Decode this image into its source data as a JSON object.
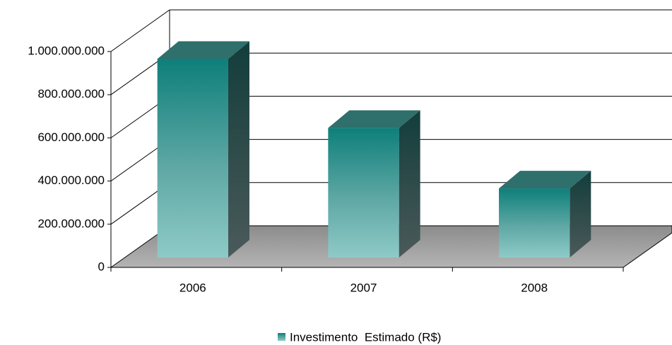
{
  "chart_data": {
    "type": "bar3d",
    "categories": [
      "2006",
      "2007",
      "2008"
    ],
    "series": [
      {
        "name": "Investimento  Estimado (R$)",
        "color": "#0e7f7a",
        "values": [
          920000000,
          600000000,
          320000000
        ]
      }
    ],
    "ylim": [
      0,
      1000000000
    ],
    "yticks": [
      0,
      {
        "value": 200000000,
        "label": "200.000.000"
      },
      {
        "value": 400000000,
        "label": "400.000.000"
      },
      {
        "value": 600000000,
        "label": "600.000.000"
      },
      {
        "value": 800000000,
        "label": "800.000.000"
      },
      {
        "value": 1000000000,
        "label": "1.000.000.000"
      }
    ],
    "grid": true,
    "legend": "bottom"
  }
}
